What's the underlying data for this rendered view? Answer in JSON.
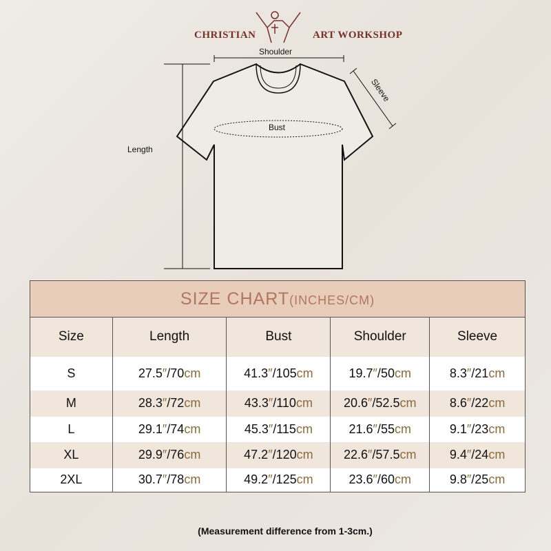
{
  "logo": {
    "left": "CHRISTIAN",
    "right": "ART WORKSHOP"
  },
  "diagram": {
    "shoulder": "Shoulder",
    "sleeve": "Sleeve",
    "bust": "Bust",
    "length": "Length"
  },
  "table": {
    "title": "SIZE CHART",
    "title_unit": "(INCHES/CM)",
    "headers": [
      "Size",
      "Length",
      "Bust",
      "Shoulder",
      "Sleeve"
    ],
    "rows": [
      [
        "S",
        "27.5",
        "70",
        "41.3",
        "105",
        "19.7",
        "50",
        "8.3",
        "21"
      ],
      [
        "M",
        "28.3",
        "72",
        "43.3",
        "110",
        "20.6",
        "52.5",
        "8.6",
        "22"
      ],
      [
        "L",
        "29.1",
        "74",
        "45.3",
        "115",
        "21.6",
        "55",
        "9.1",
        "23"
      ],
      [
        "XL",
        "29.9",
        "76",
        "47.2",
        "120",
        "22.6",
        "57.5",
        "9.4",
        "24"
      ],
      [
        "2XL",
        "30.7",
        "78",
        "49.2",
        "125",
        "23.6",
        "60",
        "9.8",
        "25"
      ]
    ],
    "inch_mark": "″",
    "cm_unit": "cm"
  },
  "note": "(Measurement difference from 1-3cm.)",
  "colors": {
    "header_bg": "#e9cdbb",
    "title_text": "#b07660",
    "alt_row": "#f1e6dc",
    "unit": "#8b6a3e",
    "logo": "#7a2e2a"
  }
}
